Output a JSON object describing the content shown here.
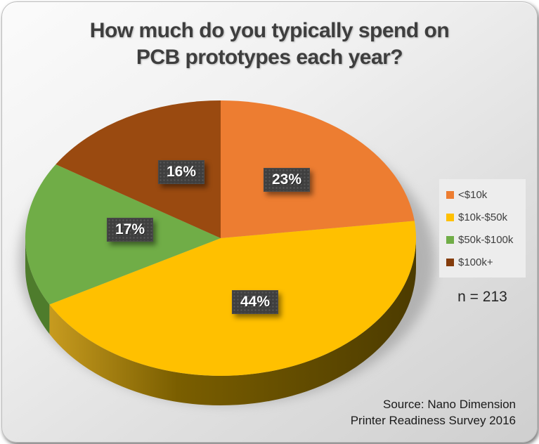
{
  "header": {
    "line1": "How much do you typically spend on",
    "line2": "PCB prototypes each year?"
  },
  "chart_data": {
    "type": "pie",
    "title": "How much do you typically spend on PCB prototypes each year?",
    "style": "3d-pie",
    "start_angle_deg": 0,
    "direction": "clockwise-from-top",
    "categories": [
      "<$10k",
      "$10k-$50k",
      "$50k-$100k",
      "$100k+"
    ],
    "values": [
      23,
      44,
      17,
      16
    ],
    "value_labels": [
      "23%",
      "44%",
      "17%",
      "16%"
    ],
    "slices": [
      {
        "label": "<$10k",
        "value": 23,
        "value_label": "23%",
        "color": "#ED7D31"
      },
      {
        "label": "$10k-$50k",
        "value": 44,
        "value_label": "44%",
        "color": "#FFC000",
        "side": "gold-gradient"
      },
      {
        "label": "$50k-$100k",
        "value": 17,
        "value_label": "17%",
        "color": "#70AD47",
        "side": "#4E7C2C"
      },
      {
        "label": "$100k+",
        "value": 16,
        "value_label": "16%",
        "color": "#9A4A10"
      }
    ],
    "legend_position": "right",
    "sample_size": "n = 213"
  },
  "legend": {
    "items": [
      {
        "label": "<$10k",
        "color": "#ED7D31"
      },
      {
        "label": "$10k-$50k",
        "color": "#FFC000"
      },
      {
        "label": "$50k-$100k",
        "color": "#70AD47"
      },
      {
        "label": "$100k+",
        "color": "#843C0C"
      }
    ]
  },
  "sample_size": "n = 213",
  "source": {
    "line1": "Source: Nano Dimension",
    "line2": "Printer Readiness Survey 2016"
  },
  "colors": {
    "title_text": "#3E3E3E",
    "label_chip_bg": "#3F3F3F",
    "label_chip_text": "#FFFFFF",
    "legend_panel_bg": "#EDEDED",
    "legend_text": "#404040",
    "card_gradient_start": "#FBFBFB",
    "card_gradient_end": "#CFCFCF",
    "pie_side_gold_dark": "#4C3B00",
    "pie_side_gold_light": "#C79B1F"
  }
}
